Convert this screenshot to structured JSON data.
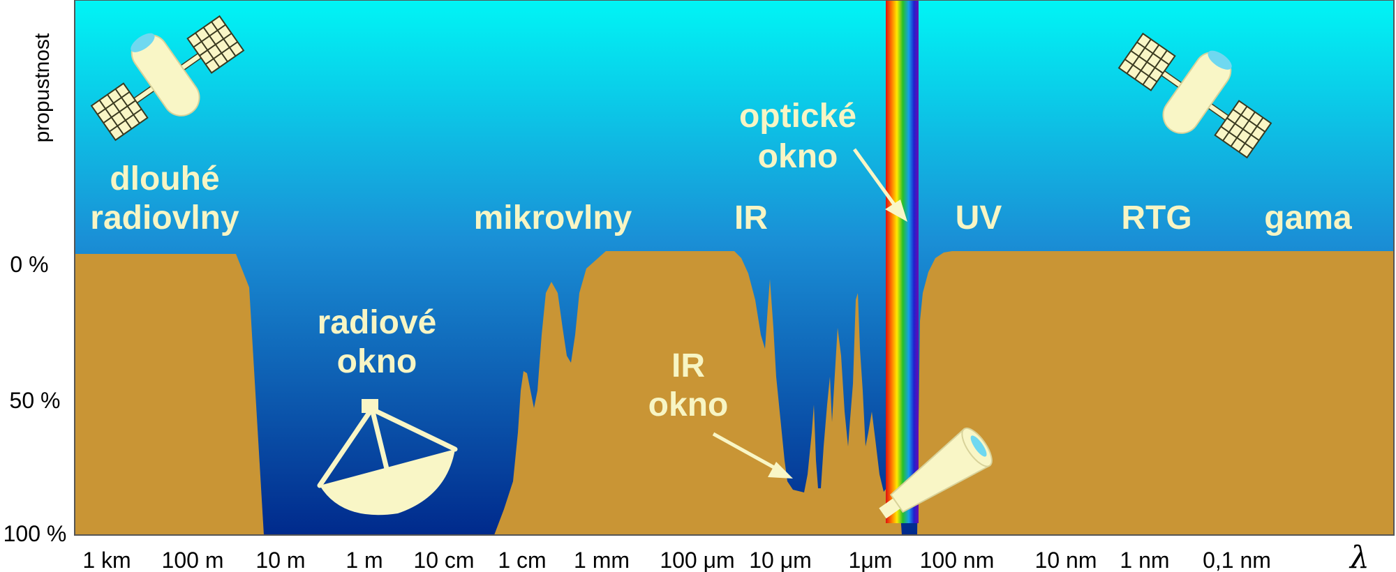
{
  "y_axis": {
    "name": "propustnost",
    "ticks": [
      "0 %",
      "50 %",
      "100 %"
    ]
  },
  "x_axis": {
    "symbol": "λ",
    "ticks": [
      "1 km",
      "100 m",
      "10 m",
      "1 m",
      "10 cm",
      "1 cm",
      "1 mm",
      "100 μm",
      "10 μm",
      "1μm",
      "100 nm",
      "10 nm",
      "1 nm",
      "0,1 nm"
    ]
  },
  "bands": {
    "long_radio_line1": "dlouhé",
    "long_radio_line2": "radiovlny",
    "microwaves": "mikrovlny",
    "ir": "IR",
    "uv": "UV",
    "xray": "RTG",
    "gamma": "gama"
  },
  "windows": {
    "optical_line1": "optické",
    "optical_line2": "okno",
    "radio_line1": "radiové",
    "radio_line2": "okno",
    "ir_line1": "IR",
    "ir_line2": "okno"
  },
  "colors": {
    "sky_top": "#00f5f5",
    "sky_mid": "#1a8fd6",
    "sky_bottom": "#002a8c",
    "atmosphere": "#c99535",
    "label": "#f7f5c4",
    "icon": "#f9f6c6"
  },
  "icons": [
    "satellite-icon",
    "satellite-icon",
    "radio-telescope-icon",
    "optical-telescope-icon",
    "arrow-icon"
  ]
}
